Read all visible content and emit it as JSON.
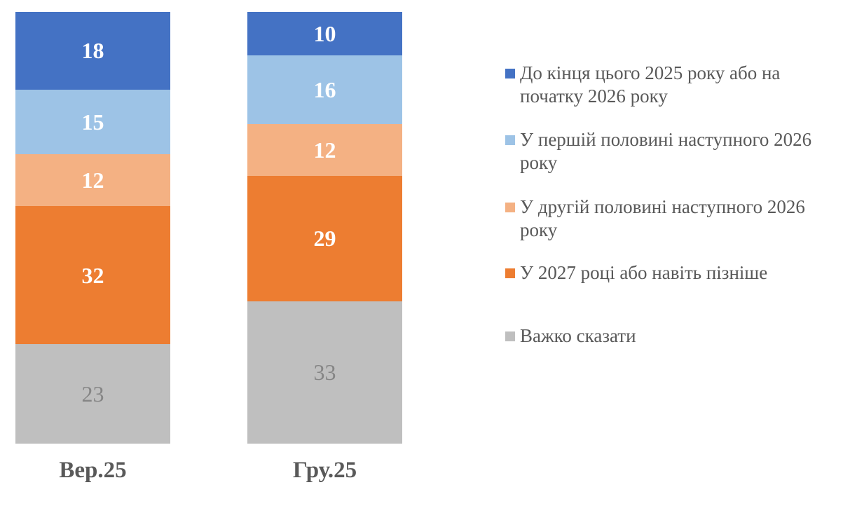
{
  "chart_data": {
    "type": "bar",
    "stacked": true,
    "orientation": "vertical",
    "background": "#FFFFFF",
    "grid": false,
    "axes_visible": false,
    "legend_position": "right",
    "legend_text_color": "#595959",
    "category_label_color": "#595959",
    "total_per_column": 100,
    "ylim": [
      0,
      100
    ],
    "categories": [
      "Вер.25",
      "Гру.25"
    ],
    "series": [
      {
        "name": "До кінця цього 2025 року або на початку 2026 року",
        "color": "#4472C4",
        "values": [
          18,
          10
        ],
        "value_label_color": "#FFFFFF",
        "value_label_bold": true
      },
      {
        "name": "У першій половині наступного 2026 року",
        "color": "#9DC3E6",
        "values": [
          15,
          16
        ],
        "value_label_color": "#FFFFFF",
        "value_label_bold": true
      },
      {
        "name": "У другій половині наступного 2026 року",
        "color": "#F4B183",
        "values": [
          12,
          12
        ],
        "value_label_color": "#FFFFFF",
        "value_label_bold": true
      },
      {
        "name": "У 2027 році або навіть пізніше",
        "color": "#ED7D31",
        "values": [
          32,
          29
        ],
        "value_label_color": "#FFFFFF",
        "value_label_bold": true
      },
      {
        "name": "Важко сказати",
        "color": "#BFBFBF",
        "values": [
          23,
          33
        ],
        "value_label_color": "#858585",
        "value_label_bold": false
      }
    ]
  }
}
